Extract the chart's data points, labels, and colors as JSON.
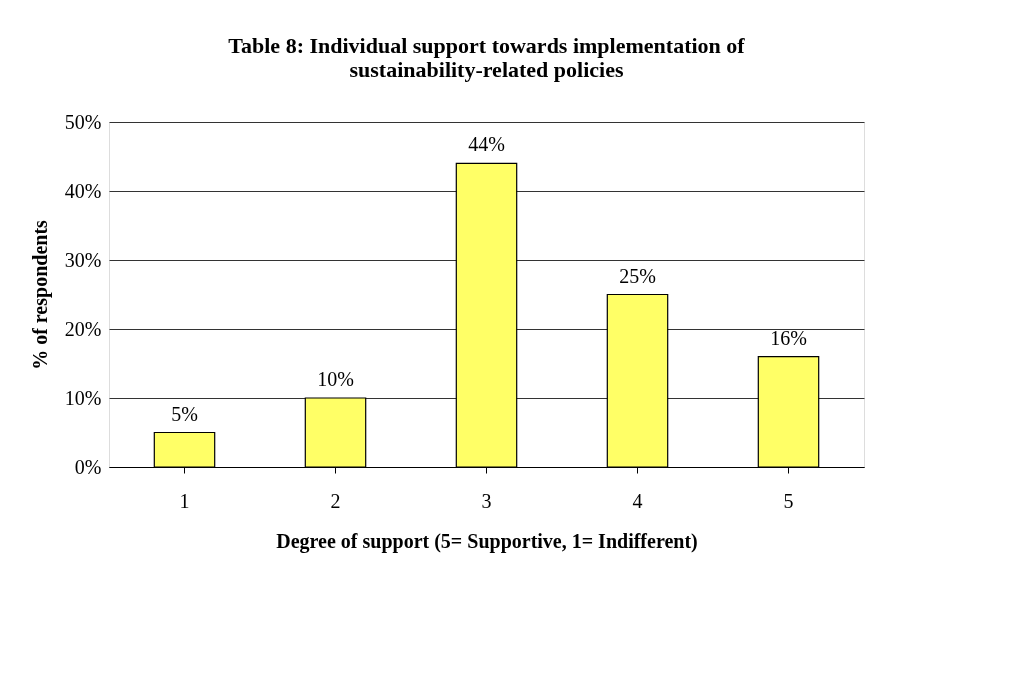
{
  "chart_data": {
    "type": "bar",
    "title": "Table 8: Individual support towards implementation of sustainability-related policies",
    "xlabel": "Degree of support (5= Supportive, 1= Indifferent)",
    "ylabel": "% of respondents",
    "categories": [
      "1",
      "2",
      "3",
      "4",
      "5"
    ],
    "values": [
      5,
      10,
      44,
      25,
      16
    ],
    "value_labels": [
      "5%",
      "10%",
      "44%",
      "25%",
      "16%"
    ],
    "color": "#ffff66",
    "ylim": [
      0,
      50
    ],
    "yticks": [
      {
        "value": 0,
        "label": "0%"
      },
      {
        "value": 10,
        "label": "10%"
      },
      {
        "value": 20,
        "label": "20%"
      },
      {
        "value": 30,
        "label": "30%"
      },
      {
        "value": 40,
        "label": "40%"
      },
      {
        "value": 50,
        "label": "50%"
      }
    ],
    "grid": "y"
  }
}
